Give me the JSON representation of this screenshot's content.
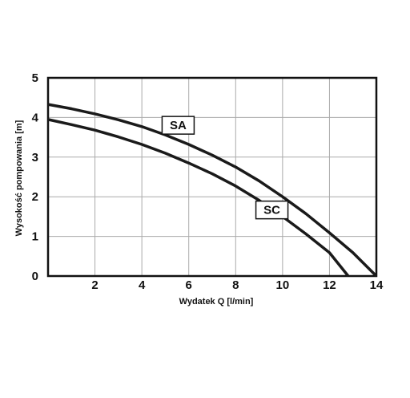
{
  "chart_data": {
    "type": "line",
    "xlabel": "Wydatek Q  [l/min]",
    "ylabel": "Wysokość pompowania  [m]",
    "xlim": [
      0,
      14
    ],
    "ylim": [
      0,
      5
    ],
    "xticks": [
      2,
      4,
      6,
      8,
      10,
      12,
      14
    ],
    "yticks": [
      0,
      1,
      2,
      3,
      4,
      5
    ],
    "grid": true,
    "series": [
      {
        "name": "SA",
        "color": "#1a1a1a",
        "x": [
          0,
          1,
          2,
          3,
          4,
          5,
          6,
          7,
          8,
          9,
          10,
          11,
          12,
          13,
          14
        ],
        "values": [
          4.33,
          4.22,
          4.09,
          3.94,
          3.77,
          3.56,
          3.32,
          3.05,
          2.75,
          2.4,
          2.0,
          1.57,
          1.09,
          0.59,
          0
        ]
      },
      {
        "name": "SC",
        "color": "#1a1a1a",
        "x": [
          0,
          1,
          2,
          3,
          4,
          5,
          6,
          7,
          8,
          9,
          10,
          11,
          12,
          12.8
        ],
        "values": [
          3.95,
          3.82,
          3.68,
          3.51,
          3.32,
          3.1,
          2.85,
          2.58,
          2.27,
          1.91,
          1.5,
          1.06,
          0.59,
          0
        ]
      }
    ]
  }
}
